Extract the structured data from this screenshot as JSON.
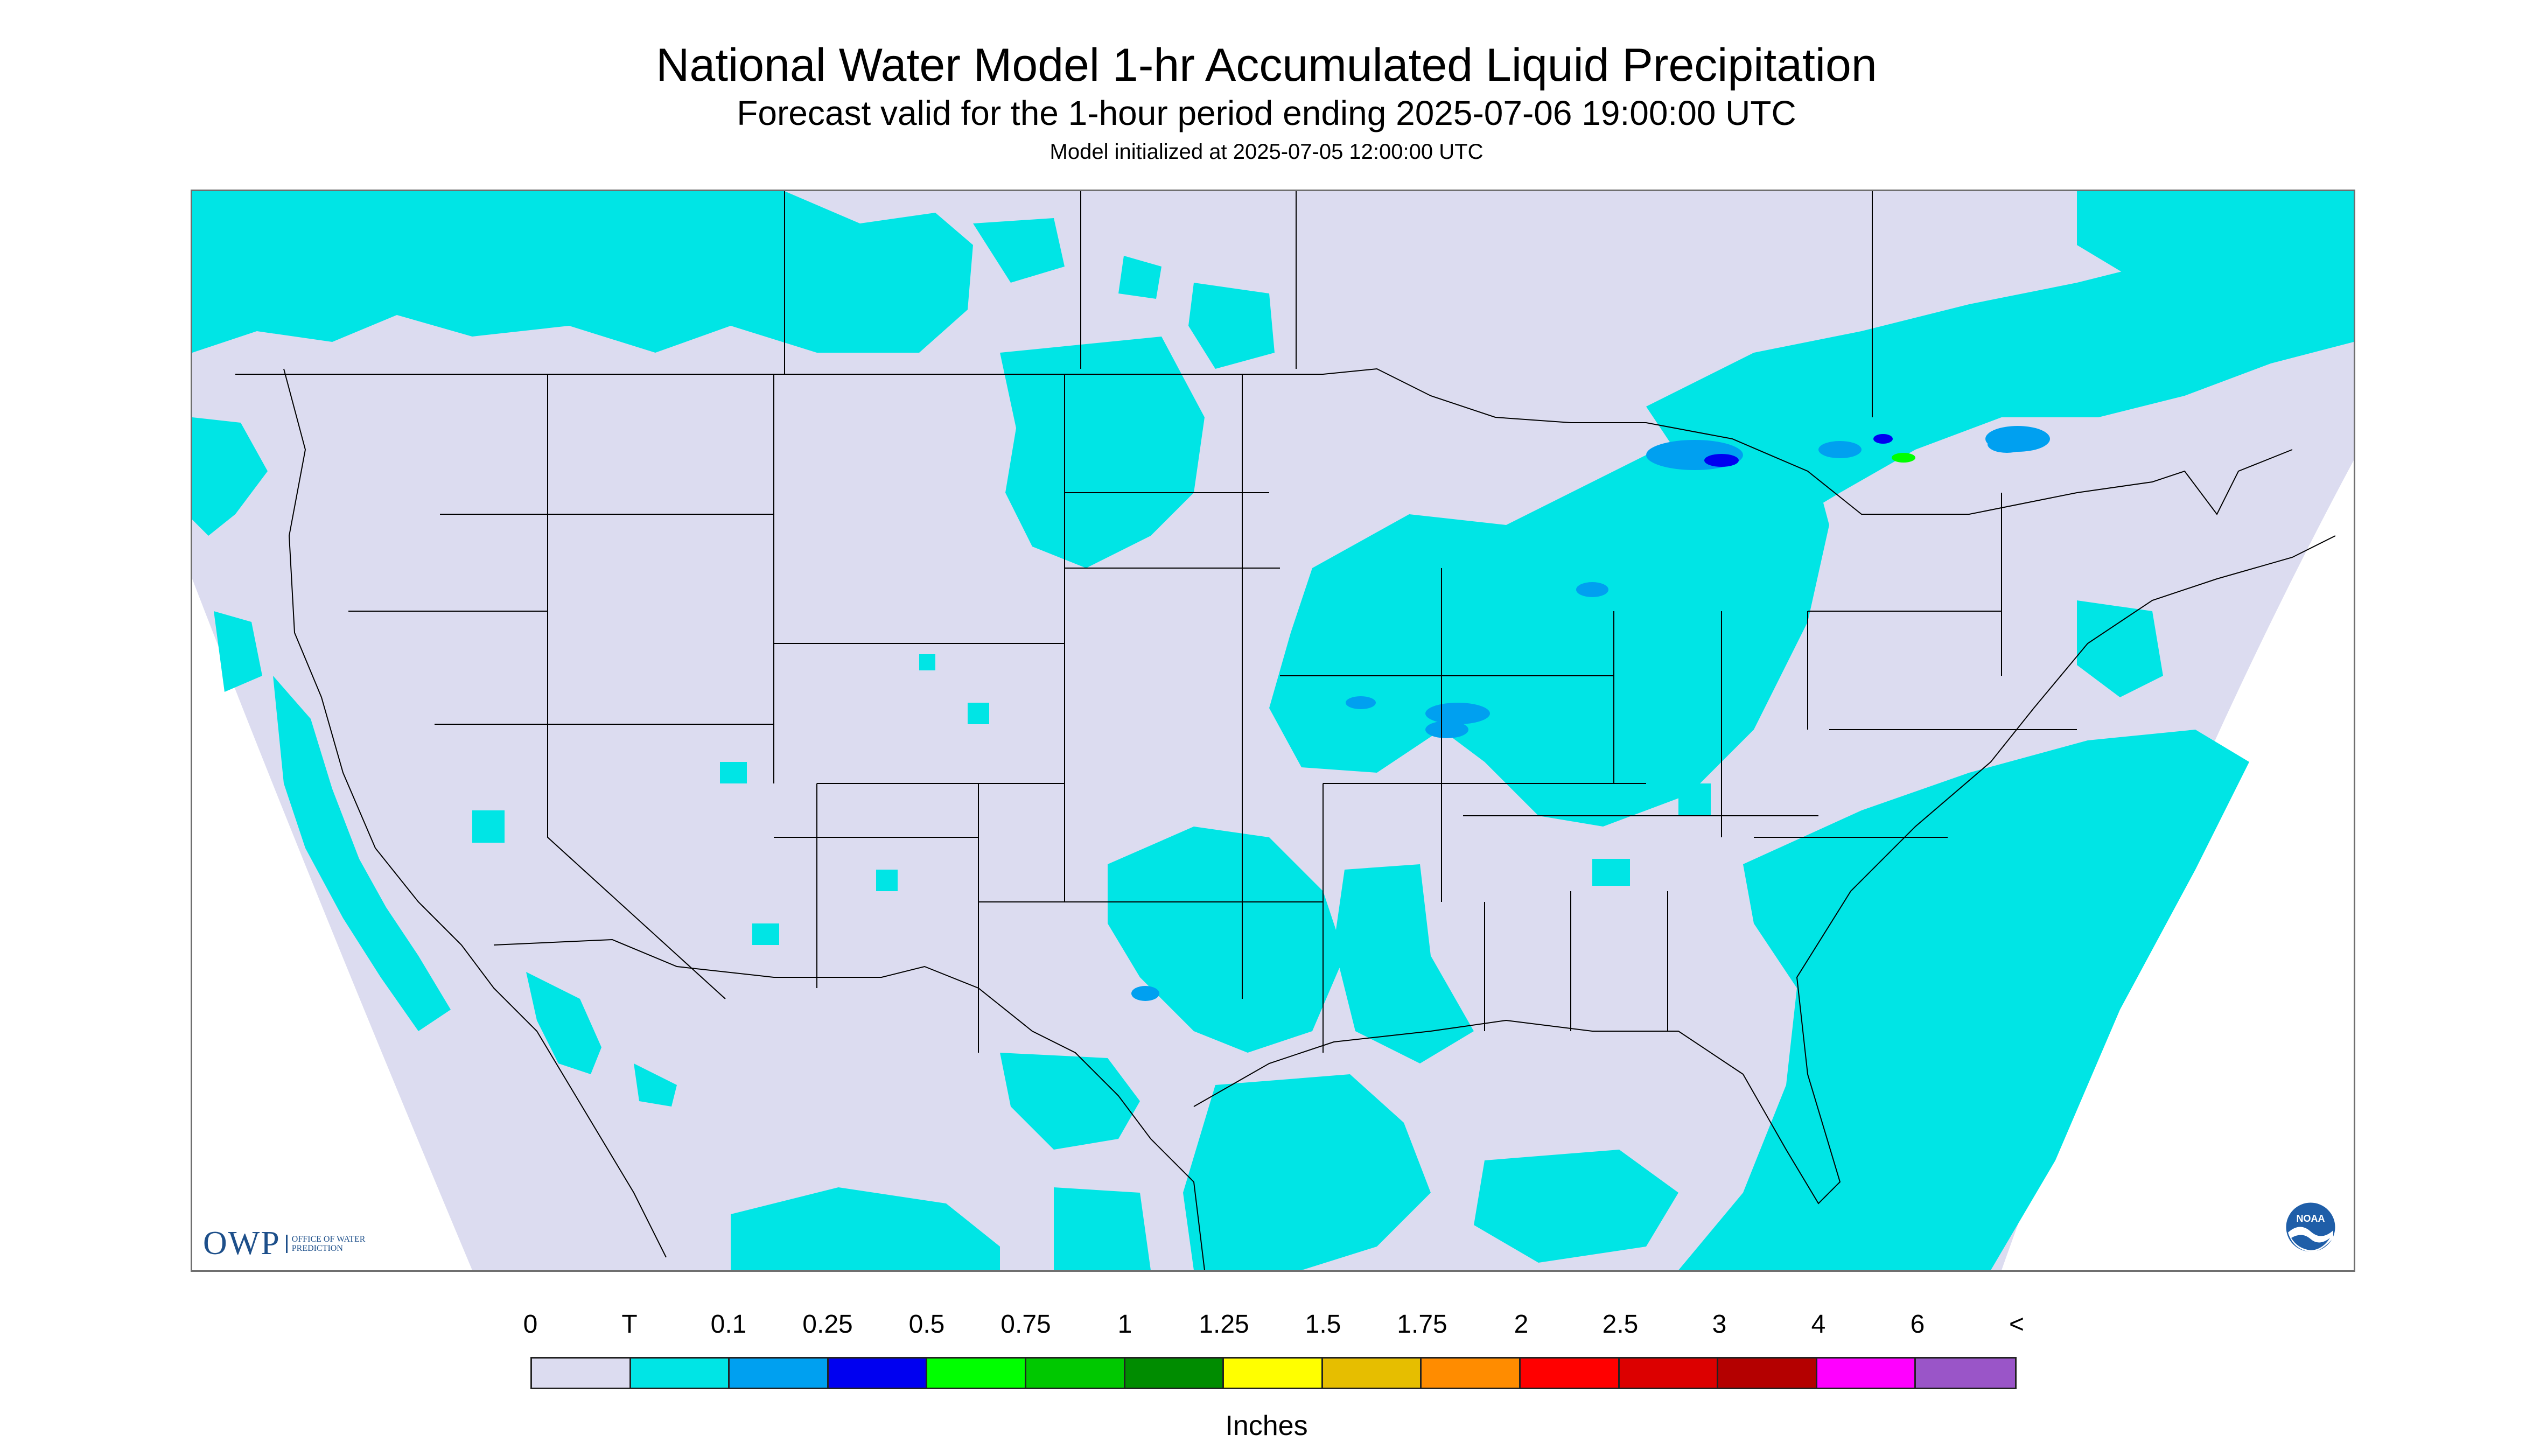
{
  "header": {
    "title": "National Water Model 1-hr Accumulated Liquid Precipitation",
    "subtitle": "Forecast valid for the 1-hour period ending 2025-07-06 19:00:00 UTC",
    "initialized": "Model initialized at 2025-07-05 12:00:00 UTC"
  },
  "logos": {
    "owp_letters": "OWP",
    "owp_text": "Office of Water Prediction",
    "noaa_text": "NOAA"
  },
  "legend": {
    "units": "Inches",
    "labels": [
      "0",
      "T",
      "0.1",
      "0.25",
      "0.5",
      "0.75",
      "1",
      "1.25",
      "1.5",
      "1.75",
      "2",
      "2.5",
      "3",
      "4",
      "6",
      "<"
    ],
    "colors": [
      "#dcdcf0",
      "#00e5e5",
      "#00a0f0",
      "#0000f0",
      "#00ff00",
      "#00c800",
      "#008c00",
      "#ffff00",
      "#e6be00",
      "#ff8c00",
      "#ff0000",
      "#dc0000",
      "#b40000",
      "#ff00ff",
      "#9a55c8"
    ]
  },
  "map": {
    "background_color": "#dcdcf0",
    "outside_color": "#ffffff",
    "boundary_color": "#000000"
  }
}
